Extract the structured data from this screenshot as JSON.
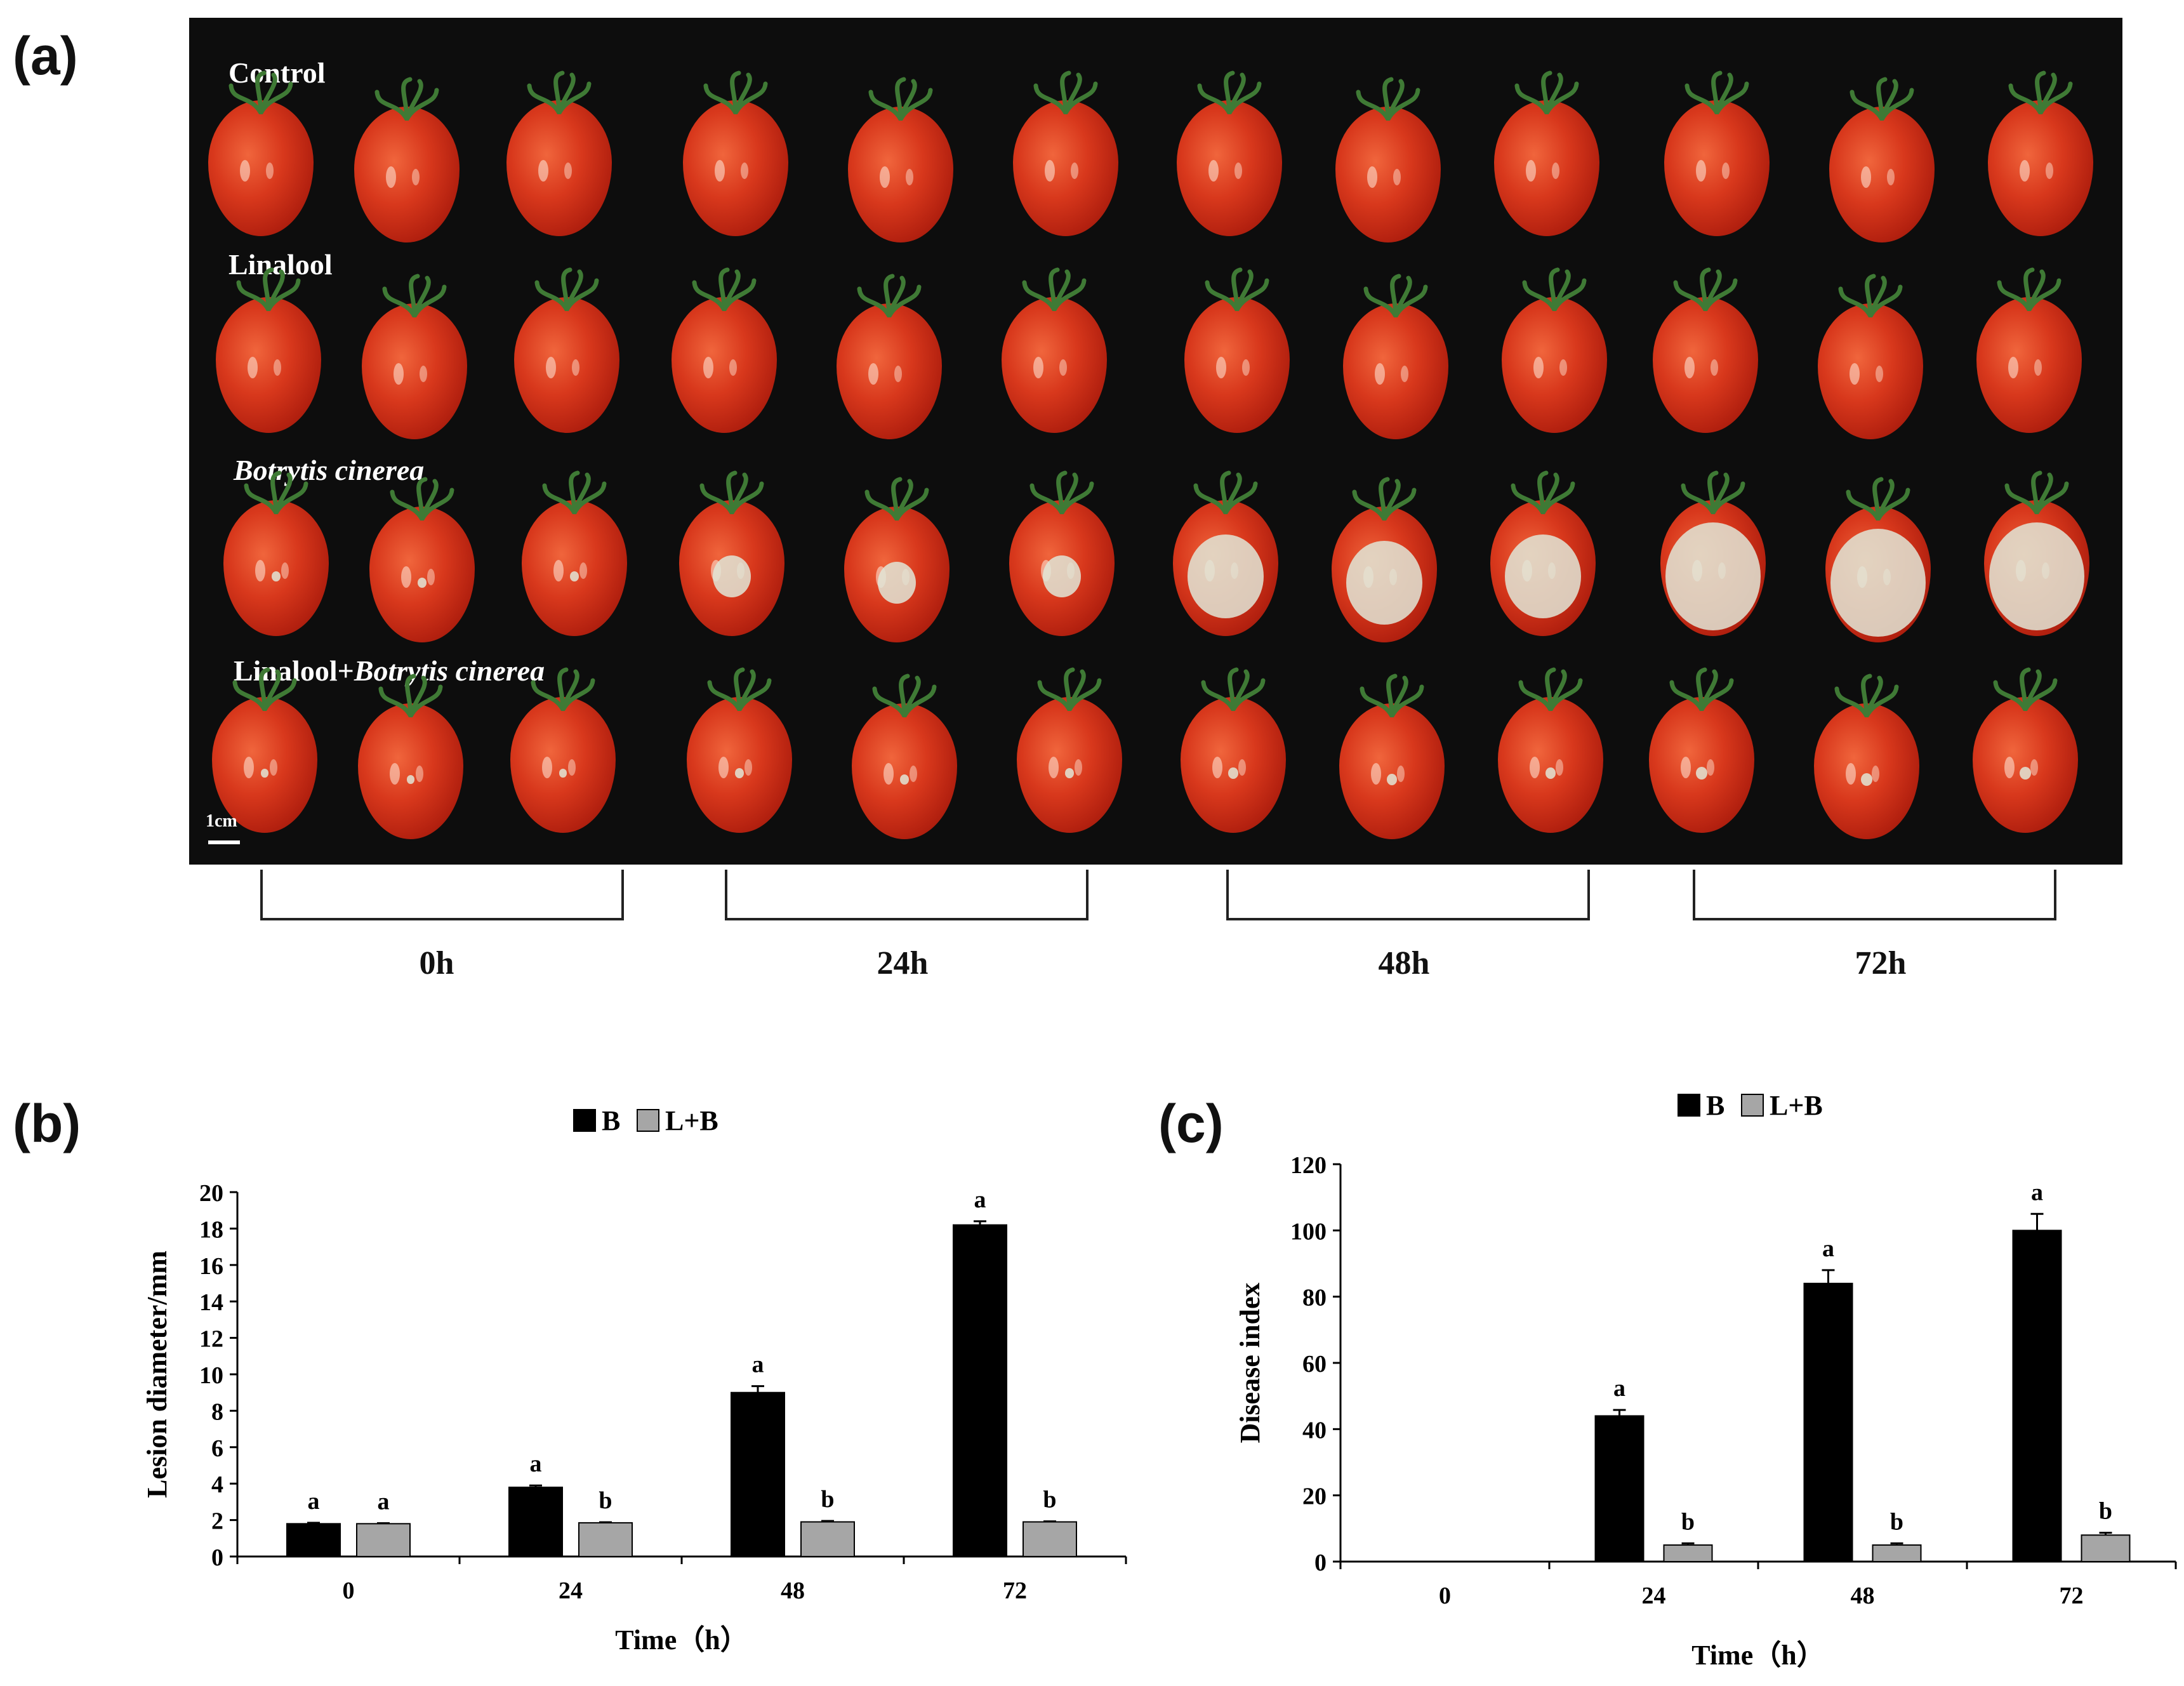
{
  "panel_labels": {
    "a": "(a)",
    "b": "(b)",
    "c": "(c)"
  },
  "photo": {
    "row_labels": [
      {
        "text": "Control",
        "italic": ""
      },
      {
        "text": "Linalool",
        "italic": ""
      },
      {
        "text": "",
        "italic": "Botrytis cinerea"
      },
      {
        "text": "Linalool+",
        "italic": "Botrytis cinerea"
      }
    ],
    "scale_label": "1cm",
    "time_labels": [
      "0h",
      "24h",
      "48h",
      "72h"
    ]
  },
  "chart_data": [
    {
      "type": "bar",
      "title": "",
      "legend": [
        "B",
        "L+B"
      ],
      "legend_position": "top-center",
      "categories": [
        "0",
        "24",
        "48",
        "72"
      ],
      "series": [
        {
          "name": "B",
          "color": "#000000",
          "values": [
            1.8,
            3.8,
            9.0,
            18.2
          ],
          "errors": [
            0.05,
            0.1,
            0.35,
            0.2
          ],
          "letters": [
            "a",
            "a",
            "a",
            "a"
          ]
        },
        {
          "name": "L+B",
          "color": "#a6a6a6",
          "values": [
            1.8,
            1.85,
            1.9,
            1.9
          ],
          "errors": [
            0.03,
            0.03,
            0.05,
            0.03
          ],
          "letters": [
            "a",
            "b",
            "b",
            "b"
          ]
        }
      ],
      "xlabel": "Time（h）",
      "ylabel": "Lesion diameter/mm",
      "ylim": [
        0,
        20
      ],
      "yticks": [
        0,
        2,
        4,
        6,
        8,
        10,
        12,
        14,
        16,
        18,
        20
      ]
    },
    {
      "type": "bar",
      "title": "",
      "legend": [
        "B",
        "L+B"
      ],
      "legend_position": "top-center",
      "categories": [
        "0",
        "24",
        "48",
        "72"
      ],
      "series": [
        {
          "name": "B",
          "color": "#000000",
          "values": [
            0,
            44,
            84,
            100
          ],
          "errors": [
            0,
            1.8,
            4,
            5
          ],
          "letters": [
            "",
            "a",
            "a",
            "a"
          ]
        },
        {
          "name": "L+B",
          "color": "#a6a6a6",
          "values": [
            0,
            5,
            5,
            8
          ],
          "errors": [
            0,
            0.5,
            0.5,
            0.7
          ],
          "letters": [
            "",
            "b",
            "b",
            "b"
          ]
        }
      ],
      "xlabel": "Time（h）",
      "ylabel": "Disease index",
      "ylim": [
        0,
        120
      ],
      "yticks": [
        0,
        20,
        40,
        60,
        80,
        100,
        120
      ]
    }
  ]
}
